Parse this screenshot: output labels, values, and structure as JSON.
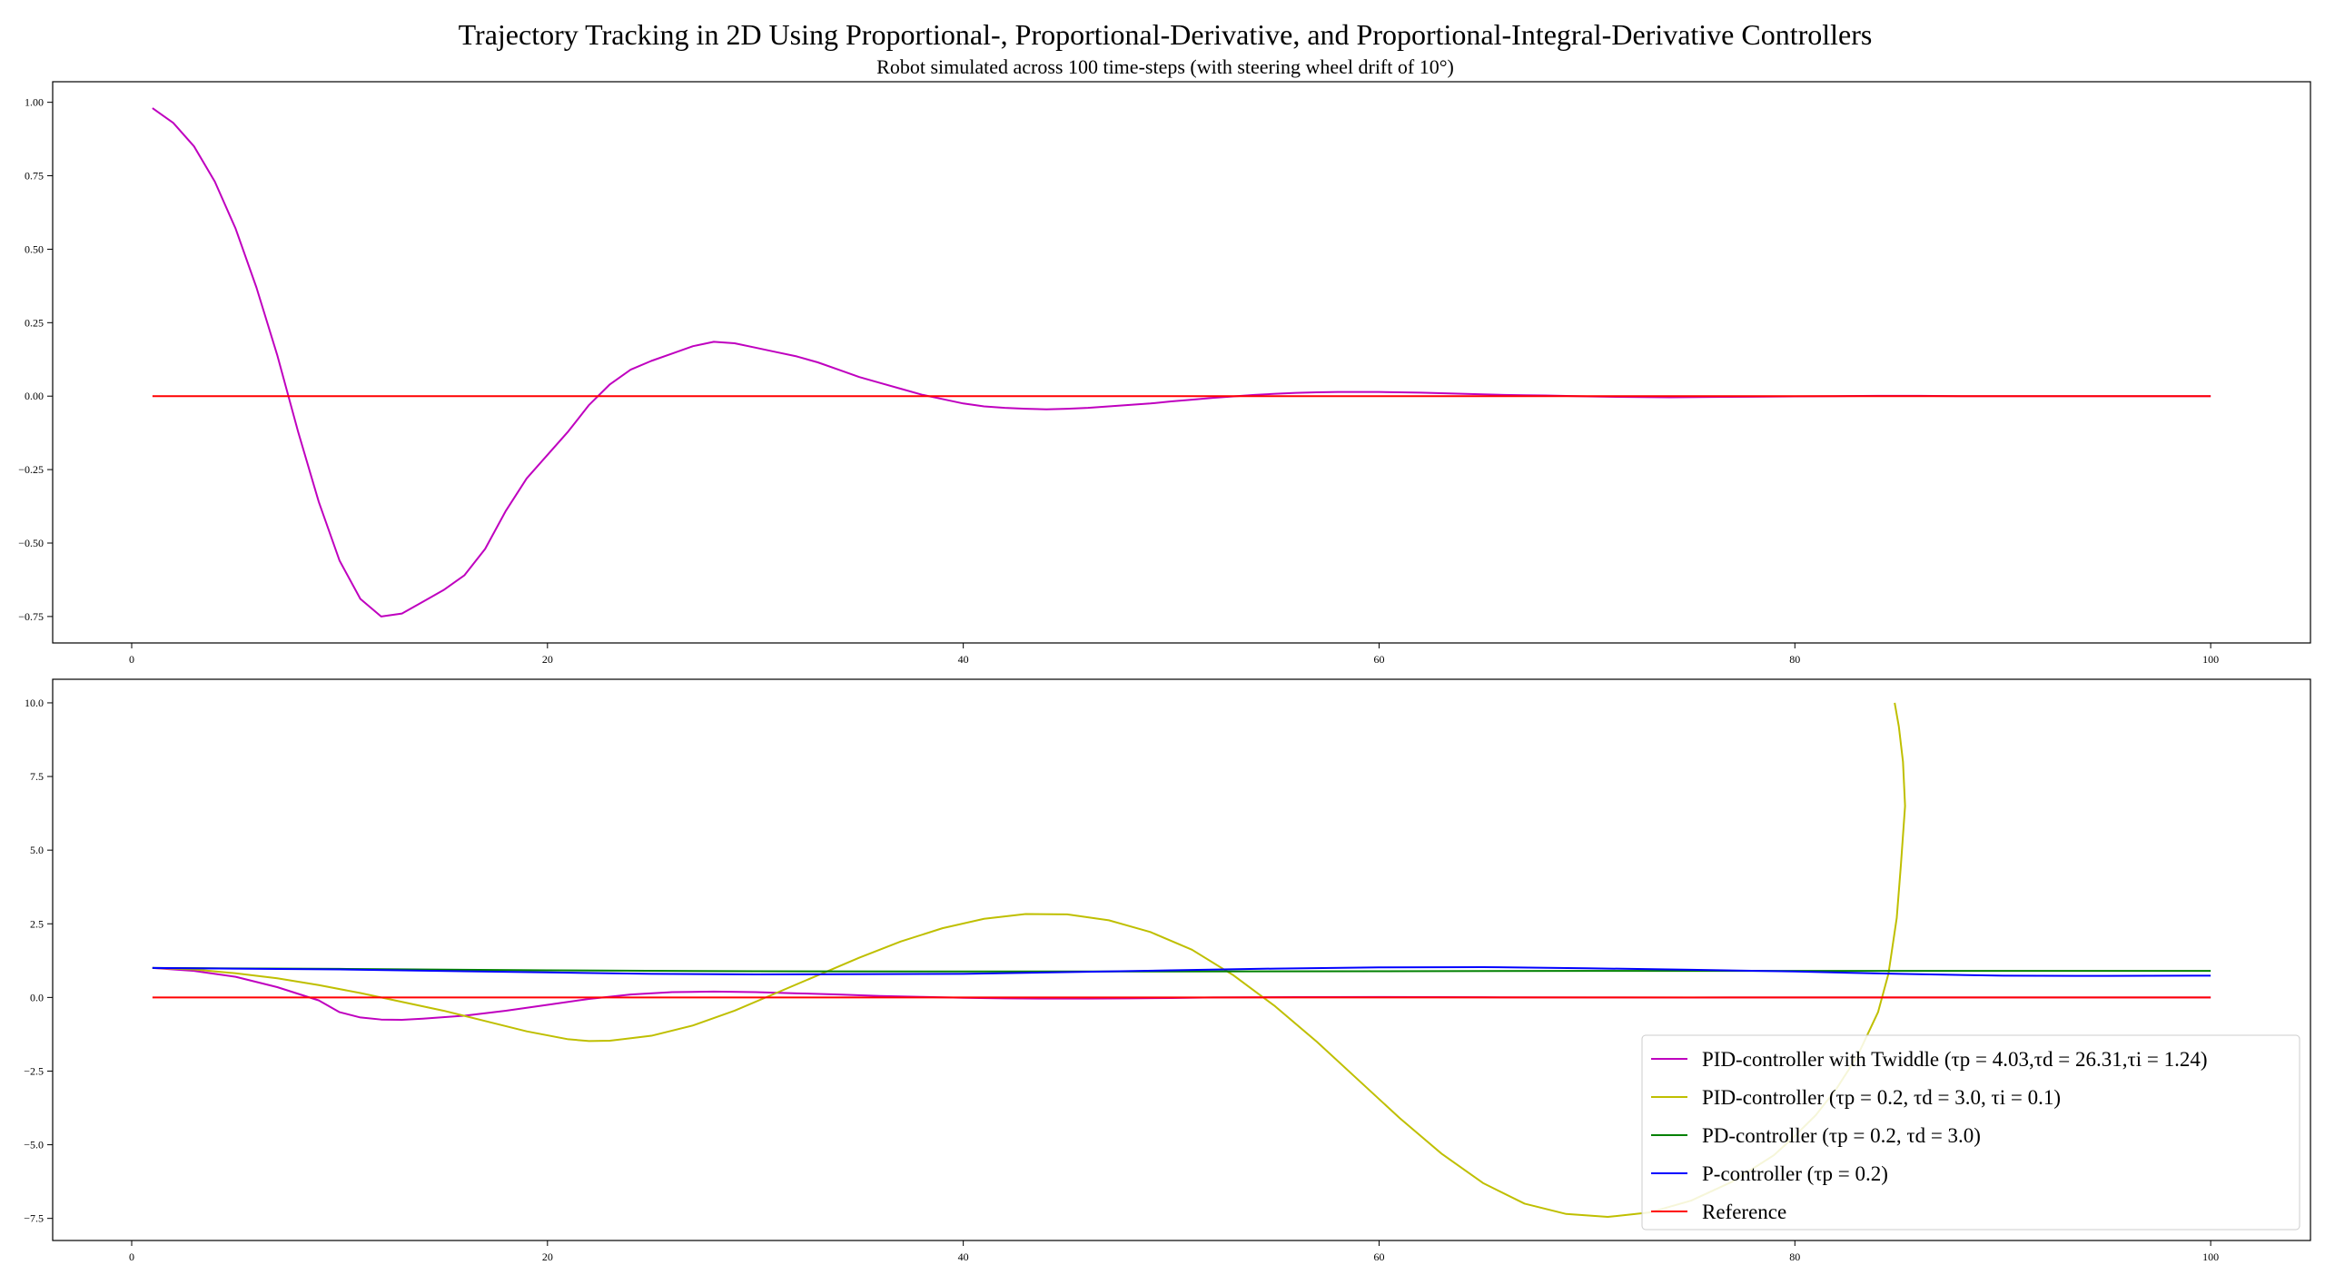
{
  "figure": {
    "title": "Trajectory Tracking in 2D Using Proportional-, Proportional-Derivative, and Proportional-Integral-Derivative Controllers",
    "subtitle": "Robot simulated across 100 time-steps (with steering wheel drift of 10°)"
  },
  "chart_data": [
    {
      "type": "line",
      "title": "",
      "xlabel": "",
      "ylabel": "",
      "xlim": [
        -3.8,
        104.8
      ],
      "ylim": [
        -0.84,
        1.07
      ],
      "xticks": [
        0,
        20,
        40,
        60,
        80,
        100
      ],
      "yticks": [
        -0.75,
        -0.5,
        -0.25,
        0.0,
        0.25,
        0.5,
        0.75,
        1.0
      ],
      "xtick_labels": [
        "0",
        "20",
        "40",
        "60",
        "80",
        "100"
      ],
      "ytick_labels": [
        "−0.75",
        "−0.50",
        "−0.25",
        "0.00",
        "0.25",
        "0.50",
        "0.75",
        "1.00"
      ],
      "grid": false,
      "series": [
        {
          "name": "PID-controller with Twiddle",
          "color": "#bf00bf",
          "points": [
            [
              1,
              0.98
            ],
            [
              2,
              0.93
            ],
            [
              3,
              0.85
            ],
            [
              4,
              0.73
            ],
            [
              5,
              0.57
            ],
            [
              6,
              0.37
            ],
            [
              7,
              0.14
            ],
            [
              8,
              -0.12
            ],
            [
              9,
              -0.36
            ],
            [
              10,
              -0.56
            ],
            [
              11,
              -0.69
            ],
            [
              12,
              -0.75
            ],
            [
              13,
              -0.74
            ],
            [
              14,
              -0.7
            ],
            [
              15,
              -0.66
            ],
            [
              16,
              -0.61
            ],
            [
              17,
              -0.52
            ],
            [
              18,
              -0.39
            ],
            [
              19,
              -0.28
            ],
            [
              20,
              -0.2
            ],
            [
              21,
              -0.12
            ],
            [
              22,
              -0.03
            ],
            [
              23,
              0.04
            ],
            [
              24,
              0.09
            ],
            [
              25,
              0.12
            ],
            [
              26,
              0.145
            ],
            [
              27,
              0.17
            ],
            [
              28,
              0.185
            ],
            [
              29,
              0.18
            ],
            [
              30,
              0.165
            ],
            [
              31,
              0.15
            ],
            [
              32,
              0.135
            ],
            [
              33,
              0.115
            ],
            [
              34,
              0.09
            ],
            [
              35,
              0.065
            ],
            [
              36,
              0.045
            ],
            [
              37,
              0.025
            ],
            [
              38,
              0.005
            ],
            [
              39,
              -0.01
            ],
            [
              40,
              -0.025
            ],
            [
              41,
              -0.035
            ],
            [
              42,
              -0.04
            ],
            [
              43,
              -0.043
            ],
            [
              44,
              -0.045
            ],
            [
              45,
              -0.043
            ],
            [
              46,
              -0.04
            ],
            [
              47,
              -0.035
            ],
            [
              48,
              -0.03
            ],
            [
              49,
              -0.025
            ],
            [
              50,
              -0.018
            ],
            [
              51,
              -0.012
            ],
            [
              52,
              -0.006
            ],
            [
              53,
              -0.001
            ],
            [
              54,
              0.004
            ],
            [
              55,
              0.008
            ],
            [
              56,
              0.011
            ],
            [
              57,
              0.013
            ],
            [
              58,
              0.014
            ],
            [
              59,
              0.014
            ],
            [
              60,
              0.014
            ],
            [
              61,
              0.013
            ],
            [
              62,
              0.012
            ],
            [
              63,
              0.01
            ],
            [
              64,
              0.008
            ],
            [
              65,
              0.006
            ],
            [
              66,
              0.004
            ],
            [
              67,
              0.003
            ],
            [
              68,
              0.002
            ],
            [
              70,
              -0.001
            ],
            [
              72,
              -0.003
            ],
            [
              74,
              -0.004
            ],
            [
              76,
              -0.003
            ],
            [
              78,
              -0.002
            ],
            [
              80,
              -0.001
            ],
            [
              82,
              0.0
            ],
            [
              84,
              0.001
            ],
            [
              86,
              0.001
            ],
            [
              88,
              0.0
            ],
            [
              90,
              0.0
            ],
            [
              92,
              0.0
            ],
            [
              94,
              0.0
            ],
            [
              96,
              0.0
            ],
            [
              98,
              0.0
            ],
            [
              100,
              0.0
            ]
          ]
        },
        {
          "name": "Reference",
          "color": "#ff0000",
          "points": [
            [
              1,
              0.0
            ],
            [
              100,
              0.0
            ]
          ]
        }
      ]
    },
    {
      "type": "line",
      "title": "",
      "xlabel": "",
      "ylabel": "",
      "xlim": [
        -3.8,
        104.8
      ],
      "ylim": [
        -8.25,
        10.8
      ],
      "xticks": [
        0,
        20,
        40,
        60,
        80,
        100
      ],
      "yticks": [
        -7.5,
        -5.0,
        -2.5,
        0.0,
        2.5,
        5.0,
        7.5,
        10.0
      ],
      "xtick_labels": [
        "0",
        "20",
        "40",
        "60",
        "80",
        "100"
      ],
      "ytick_labels": [
        "−7.5",
        "−5.0",
        "−2.5",
        "0.0",
        "2.5",
        "5.0",
        "7.5",
        "10.0"
      ],
      "grid": false,
      "legend_position": "lower right",
      "series": [
        {
          "name": "PID-controller with Twiddle",
          "legend_text": "PID-controller with Twiddle (τp = 4.03,τd = 26.31,τi = 1.24)",
          "color": "#bf00bf",
          "points": [
            [
              1,
              1.0
            ],
            [
              3,
              0.9
            ],
            [
              5,
              0.7
            ],
            [
              7,
              0.35
            ],
            [
              9,
              -0.1
            ],
            [
              10,
              -0.5
            ],
            [
              11,
              -0.68
            ],
            [
              12,
              -0.75
            ],
            [
              13,
              -0.76
            ],
            [
              14,
              -0.72
            ],
            [
              16,
              -0.62
            ],
            [
              18,
              -0.45
            ],
            [
              20,
              -0.25
            ],
            [
              22,
              -0.05
            ],
            [
              24,
              0.1
            ],
            [
              26,
              0.18
            ],
            [
              28,
              0.2
            ],
            [
              30,
              0.18
            ],
            [
              32,
              0.14
            ],
            [
              34,
              0.1
            ],
            [
              36,
              0.05
            ],
            [
              38,
              0.02
            ],
            [
              40,
              -0.01
            ],
            [
              42,
              -0.03
            ],
            [
              44,
              -0.04
            ],
            [
              46,
              -0.04
            ],
            [
              48,
              -0.03
            ],
            [
              50,
              -0.02
            ],
            [
              52,
              0.0
            ],
            [
              56,
              0.01
            ],
            [
              60,
              0.014
            ],
            [
              65,
              0.006
            ],
            [
              70,
              -0.001
            ],
            [
              75,
              -0.003
            ],
            [
              80,
              -0.001
            ],
            [
              85,
              0.001
            ],
            [
              90,
              0.0
            ],
            [
              95,
              0.0
            ],
            [
              100,
              0.0
            ]
          ]
        },
        {
          "name": "PID-controller",
          "legend_text": "PID-controller (τp = 0.2, τd = 3.0, τi = 0.1)",
          "color": "#bfbf00",
          "points": [
            [
              1,
              1.0
            ],
            [
              3,
              0.95
            ],
            [
              5,
              0.82
            ],
            [
              7,
              0.65
            ],
            [
              9,
              0.42
            ],
            [
              11,
              0.15
            ],
            [
              13,
              -0.15
            ],
            [
              15,
              -0.45
            ],
            [
              17,
              -0.8
            ],
            [
              19,
              -1.15
            ],
            [
              21,
              -1.42
            ],
            [
              22,
              -1.48
            ],
            [
              23,
              -1.47
            ],
            [
              25,
              -1.3
            ],
            [
              27,
              -0.95
            ],
            [
              29,
              -0.45
            ],
            [
              31,
              0.15
            ],
            [
              33,
              0.75
            ],
            [
              35,
              1.35
            ],
            [
              37,
              1.9
            ],
            [
              39,
              2.35
            ],
            [
              41,
              2.67
            ],
            [
              43,
              2.83
            ],
            [
              45,
              2.82
            ],
            [
              47,
              2.62
            ],
            [
              49,
              2.22
            ],
            [
              51,
              1.62
            ],
            [
              53,
              0.75
            ],
            [
              55,
              -0.3
            ],
            [
              57,
              -1.5
            ],
            [
              59,
              -2.8
            ],
            [
              61,
              -4.1
            ],
            [
              63,
              -5.3
            ],
            [
              65,
              -6.3
            ],
            [
              67,
              -7.0
            ],
            [
              69,
              -7.35
            ],
            [
              71,
              -7.45
            ],
            [
              73,
              -7.3
            ],
            [
              75,
              -6.9
            ],
            [
              77,
              -6.25
            ],
            [
              79,
              -5.35
            ],
            [
              80,
              -4.7
            ],
            [
              81,
              -4.0
            ],
            [
              82,
              -3.1
            ],
            [
              83,
              -2.0
            ],
            [
              84,
              -0.5
            ],
            [
              84.5,
              0.8
            ],
            [
              84.9,
              2.7
            ],
            [
              85.1,
              4.5
            ],
            [
              85.3,
              6.5
            ],
            [
              85.2,
              8.0
            ],
            [
              85.0,
              9.2
            ],
            [
              84.8,
              10.0
            ]
          ]
        },
        {
          "name": "PD-controller",
          "legend_text": "PD-controller (τp = 0.2, τd = 3.0)",
          "color": "#008000",
          "points": [
            [
              1,
              1.0
            ],
            [
              10,
              0.97
            ],
            [
              20,
              0.92
            ],
            [
              30,
              0.89
            ],
            [
              40,
              0.88
            ],
            [
              50,
              0.88
            ],
            [
              60,
              0.89
            ],
            [
              70,
              0.9
            ],
            [
              80,
              0.9
            ],
            [
              90,
              0.9
            ],
            [
              100,
              0.9
            ]
          ]
        },
        {
          "name": "P-controller",
          "legend_text": "P-controller (τp = 0.2)",
          "color": "#0000ff",
          "points": [
            [
              1,
              1.0
            ],
            [
              10,
              0.95
            ],
            [
              20,
              0.85
            ],
            [
              25,
              0.8
            ],
            [
              30,
              0.78
            ],
            [
              40,
              0.8
            ],
            [
              50,
              0.92
            ],
            [
              55,
              0.98
            ],
            [
              60,
              1.02
            ],
            [
              65,
              1.03
            ],
            [
              70,
              0.99
            ],
            [
              75,
              0.94
            ],
            [
              80,
              0.88
            ],
            [
              85,
              0.8
            ],
            [
              90,
              0.74
            ],
            [
              95,
              0.73
            ],
            [
              100,
              0.74
            ]
          ]
        },
        {
          "name": "Reference",
          "legend_text": "Reference",
          "color": "#ff0000",
          "points": [
            [
              1,
              0.0
            ],
            [
              100,
              0.0
            ]
          ]
        }
      ]
    }
  ]
}
